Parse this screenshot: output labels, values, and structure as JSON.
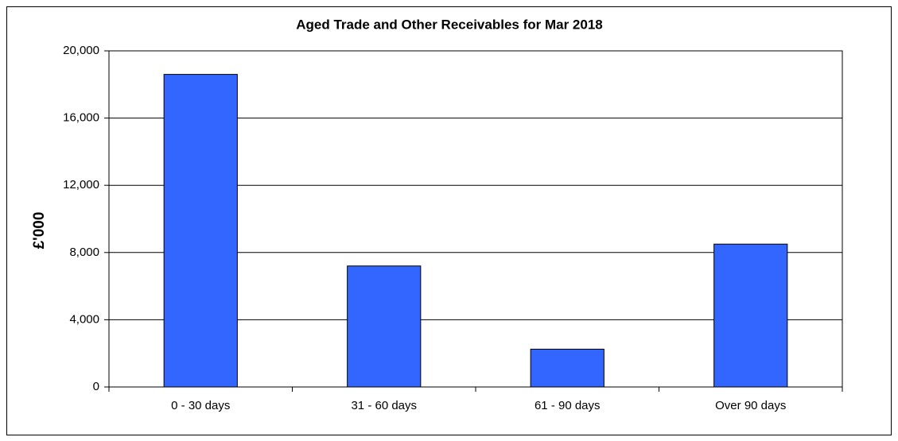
{
  "chart_data": {
    "type": "bar",
    "title": "Aged Trade and Other Receivables for Mar 2018",
    "y_label": "£'000",
    "categories": [
      "0 - 30 days",
      "31 - 60 days",
      "61 - 90 days",
      "Over 90 days"
    ],
    "values": [
      18600,
      7200,
      2250,
      8500
    ],
    "color": "#3366ff",
    "ylim": [
      0,
      20000
    ],
    "yticks": [
      0,
      {
        "value": 4000,
        "label": "4,000"
      },
      {
        "value": 8000,
        "label": "8,000"
      },
      {
        "value": 12000,
        "label": "12,000"
      },
      {
        "value": 16000,
        "label": "16,000"
      },
      {
        "value": 20000,
        "label": "20,000"
      }
    ],
    "grid": true
  }
}
